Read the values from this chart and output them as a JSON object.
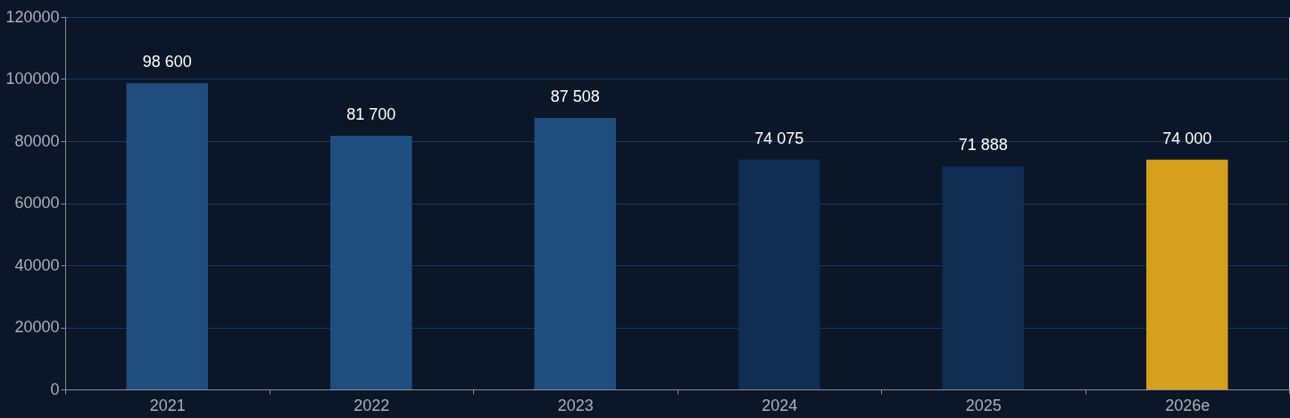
{
  "chart_data": {
    "type": "bar",
    "categories": [
      "2021",
      "2022",
      "2023",
      "2024",
      "2025",
      "2026e"
    ],
    "values": [
      98600,
      81700,
      87508,
      74075,
      71888,
      74000
    ],
    "colors": [
      "#1f4e7e",
      "#1f4e7e",
      "#1f4e7e",
      "#102d52",
      "#102d52",
      "#d4a01e"
    ],
    "value_labels": [
      "98 600",
      "81 700",
      "87 508",
      "74 075",
      "71 888",
      "74 000"
    ],
    "ylim": [
      0,
      120000
    ],
    "yticks": [
      0,
      20000,
      40000,
      60000,
      80000,
      100000,
      120000
    ],
    "grid": "y"
  }
}
